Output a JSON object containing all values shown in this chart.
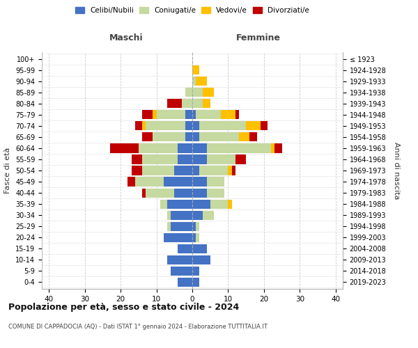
{
  "age_groups": [
    "0-4",
    "5-9",
    "10-14",
    "15-19",
    "20-24",
    "25-29",
    "30-34",
    "35-39",
    "40-44",
    "45-49",
    "50-54",
    "55-59",
    "60-64",
    "65-69",
    "70-74",
    "75-79",
    "80-84",
    "85-89",
    "90-94",
    "95-99",
    "100+"
  ],
  "birth_years": [
    "2019-2023",
    "2014-2018",
    "2009-2013",
    "2004-2008",
    "1999-2003",
    "1994-1998",
    "1989-1993",
    "1984-1988",
    "1979-1983",
    "1974-1978",
    "1969-1973",
    "1964-1968",
    "1959-1963",
    "1954-1958",
    "1949-1953",
    "1944-1948",
    "1939-1943",
    "1934-1938",
    "1929-1933",
    "1924-1928",
    "≤ 1923"
  ],
  "maschi": {
    "celibi": [
      4,
      6,
      7,
      4,
      8,
      6,
      6,
      7,
      5,
      8,
      5,
      4,
      4,
      2,
      2,
      2,
      0,
      0,
      0,
      0,
      0
    ],
    "coniugati": [
      0,
      0,
      0,
      0,
      0,
      1,
      1,
      2,
      8,
      8,
      9,
      10,
      11,
      9,
      11,
      8,
      3,
      2,
      0,
      0,
      0
    ],
    "vedovi": [
      0,
      0,
      0,
      0,
      0,
      0,
      0,
      0,
      0,
      0,
      0,
      0,
      0,
      0,
      1,
      1,
      0,
      0,
      0,
      0,
      0
    ],
    "divorziati": [
      0,
      0,
      0,
      0,
      0,
      0,
      0,
      0,
      1,
      2,
      3,
      3,
      8,
      3,
      2,
      3,
      4,
      0,
      0,
      0,
      0
    ]
  },
  "femmine": {
    "nubili": [
      2,
      2,
      5,
      4,
      1,
      1,
      3,
      5,
      4,
      4,
      2,
      4,
      4,
      2,
      2,
      1,
      0,
      0,
      0,
      0,
      0
    ],
    "coniugate": [
      0,
      0,
      0,
      0,
      1,
      1,
      3,
      5,
      5,
      5,
      8,
      8,
      18,
      11,
      13,
      7,
      3,
      3,
      1,
      0,
      0
    ],
    "vedove": [
      0,
      0,
      0,
      0,
      0,
      0,
      0,
      1,
      0,
      0,
      1,
      0,
      1,
      3,
      4,
      4,
      2,
      3,
      3,
      2,
      0
    ],
    "divorziate": [
      0,
      0,
      0,
      0,
      0,
      0,
      0,
      0,
      0,
      0,
      1,
      3,
      2,
      2,
      2,
      1,
      0,
      0,
      0,
      0,
      0
    ]
  },
  "colors": {
    "celibi": "#4472c4",
    "coniugati": "#c5d9a0",
    "vedovi": "#ffc000",
    "divorziati": "#c00000"
  },
  "xlim": [
    -42,
    42
  ],
  "xticks": [
    -40,
    -30,
    -20,
    -10,
    0,
    10,
    20,
    30,
    40
  ],
  "xtick_labels": [
    "40",
    "30",
    "20",
    "10",
    "0",
    "10",
    "20",
    "30",
    "40"
  ],
  "title": "Popolazione per età, sesso e stato civile - 2024",
  "subtitle": "COMUNE DI CAPPADOCIA (AQ) - Dati ISTAT 1° gennaio 2024 - Elaborazione TUTTITALIA.IT",
  "ylabel_left": "Fasce di età",
  "ylabel_right": "Anni di nascita",
  "header_maschi": "Maschi",
  "header_femmine": "Femmine",
  "legend_labels": [
    "Celibi/Nubili",
    "Coniugati/e",
    "Vedovi/e",
    "Divorziati/e"
  ],
  "grid_color": "#cccccc",
  "bar_height": 0.82
}
